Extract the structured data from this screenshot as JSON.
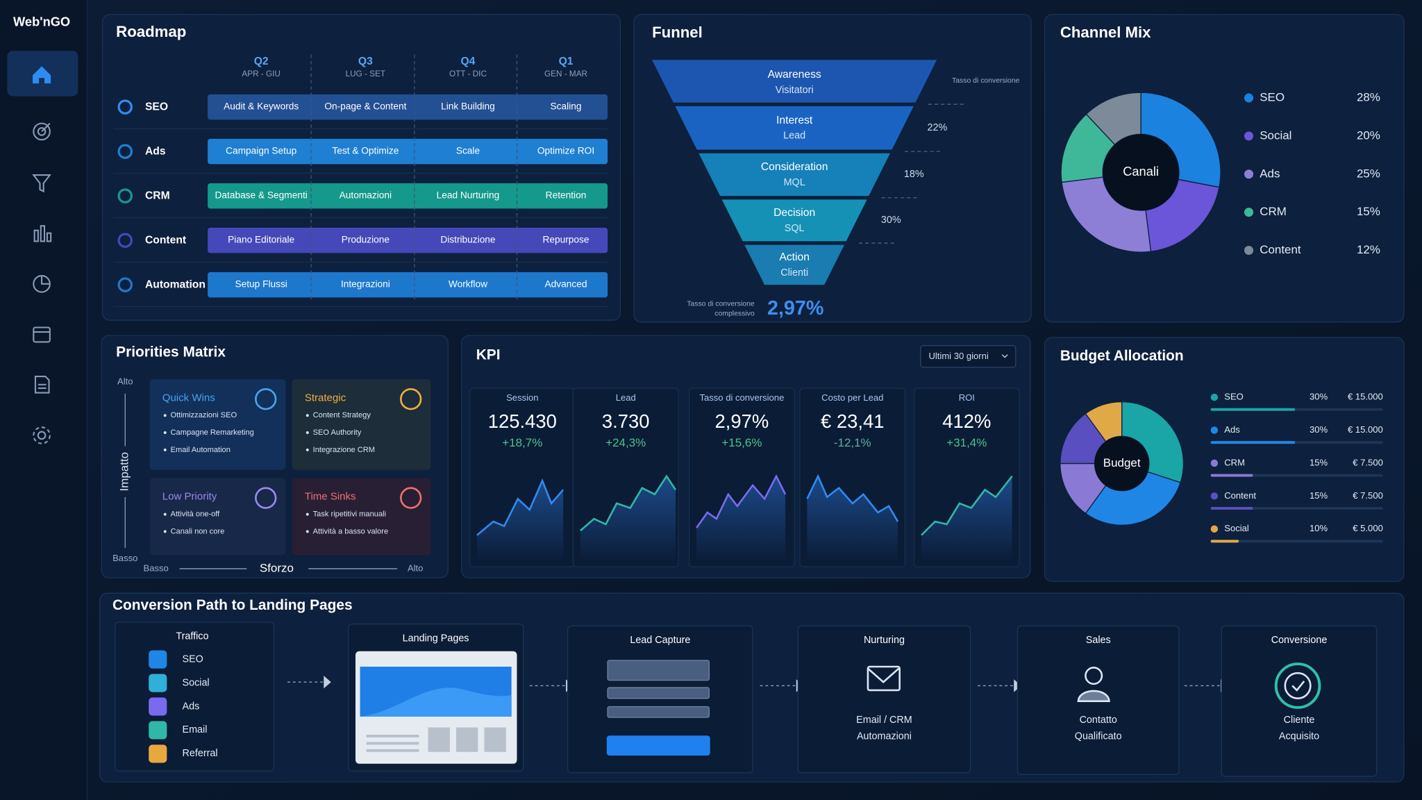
{
  "sidebar": {
    "logo": "Web'nGO"
  },
  "roadmap": {
    "title": "Roadmap",
    "quarters": [
      {
        "name": "Q2",
        "months": "APR - GIU"
      },
      {
        "name": "Q3",
        "months": "LUG - SET"
      },
      {
        "name": "Q4",
        "months": "OTT - DIC"
      },
      {
        "name": "Q1",
        "months": "GEN - MAR"
      }
    ],
    "rows": [
      {
        "label": "SEO",
        "color": "#234f93",
        "cells": [
          "Audit & Keywords",
          "On-page & Content",
          "Link Building",
          "Scaling"
        ]
      },
      {
        "label": "Ads",
        "color": "#1f7fd3",
        "cells": [
          "Campaign Setup",
          "Test & Optimize",
          "Scale",
          "Optimize ROI"
        ]
      },
      {
        "label": "CRM",
        "color": "#14998c",
        "cells": [
          "Database & Segmenti",
          "Automazioni",
          "Lead Nurturing",
          "Retention"
        ]
      },
      {
        "label": "Content",
        "color": "#4548b8",
        "cells": [
          "Piano Editoriale",
          "Produzione",
          "Distribuzione",
          "Repurpose"
        ]
      },
      {
        "label": "Automation",
        "color": "#1d78cc",
        "cells": [
          "Setup Flussi",
          "Integrazioni",
          "Workflow",
          "Advanced"
        ]
      }
    ]
  },
  "funnel": {
    "title": "Funnel",
    "rate_caption": "Tasso di conversione",
    "stages": [
      {
        "name": "Awareness",
        "metric": "Visitatori",
        "color": "#1d56b0"
      },
      {
        "name": "Interest",
        "metric": "Lead",
        "color": "#1b63c2"
      },
      {
        "name": "Consideration",
        "metric": "MQL",
        "color": "#1680b8"
      },
      {
        "name": "Decision",
        "metric": "SQL",
        "color": "#1591b6"
      },
      {
        "name": "Action",
        "metric": "Clienti",
        "color": "#1a7cb0"
      }
    ],
    "rates": [
      "22%",
      "18%",
      "30%"
    ],
    "overall_caption": [
      "Tasso di conversione",
      "complessivo"
    ],
    "overall": "2,97%"
  },
  "channel_mix": {
    "title": "Channel Mix",
    "center": "Canali",
    "names": [
      "SEO",
      "Social",
      "Ads",
      "CRM",
      "Content"
    ],
    "values": [
      28,
      20,
      25,
      15,
      12
    ],
    "value_labels": [
      "28%",
      "20%",
      "25%",
      "15%",
      "12%"
    ],
    "colors": [
      "#1b82e0",
      "#6b55d8",
      "#8d7fd6",
      "#3fb89a",
      "#7c8a99"
    ]
  },
  "priorities": {
    "title": "Priorities Matrix",
    "y_high": "Alto",
    "y_low": "Basso",
    "y_axis": "Impatto",
    "x_low": "Basso",
    "x_axis": "Sforzo",
    "x_high": "Alto",
    "quadrants": [
      {
        "title": "Quick Wins",
        "items": [
          "Ottimizzazioni SEO",
          "Campagne Remarketing",
          "Email Automation"
        ]
      },
      {
        "title": "Strategic",
        "items": [
          "Content Strategy",
          "SEO Authority",
          "Integrazione CRM"
        ]
      },
      {
        "title": "Low Priority",
        "items": [
          "Attività one-off",
          "Canali non core"
        ]
      },
      {
        "title": "Time Sinks",
        "items": [
          "Task ripetitivi manuali",
          "Attività a basso valore"
        ]
      }
    ]
  },
  "kpi": {
    "title": "KPI",
    "period": "Ultimi 30 giorni",
    "cards": [
      {
        "label": "Session",
        "value": "125.430",
        "change": "+18,7%"
      },
      {
        "label": "Lead",
        "value": "3.730",
        "change": "+24,3%"
      },
      {
        "label": "Tasso di conversione",
        "value": "2,97%",
        "change": "+15,6%"
      },
      {
        "label": "Costo per Lead",
        "value": "€ 23,41",
        "change": "-12,1%"
      },
      {
        "label": "ROI",
        "value": "412%",
        "change": "+31,4%"
      }
    ]
  },
  "budget": {
    "title": "Budget Allocation",
    "center": "Budget",
    "names": [
      "SEO",
      "Ads",
      "CRM",
      "Content",
      "Social"
    ],
    "values": [
      30,
      30,
      15,
      15,
      10
    ],
    "value_labels": [
      "30%",
      "30%",
      "15%",
      "15%",
      "10%"
    ],
    "amounts": [
      "€ 15.000",
      "€ 15.000",
      "€ 7.500",
      "€ 7.500",
      "€ 5.000"
    ],
    "colors": [
      "#1aa5a6",
      "#1f86e6",
      "#8a7ad6",
      "#5a4fc0",
      "#e0a846"
    ]
  },
  "conversion_path": {
    "title": "Conversion Path to Landing Pages",
    "traffic": {
      "title": "Traffico",
      "sources": [
        "SEO",
        "Social",
        "Ads",
        "Email",
        "Referral"
      ]
    },
    "steps": [
      {
        "title": "Landing Pages"
      },
      {
        "title": "Lead Capture"
      },
      {
        "title": "Nurturing",
        "lines": [
          "Email / CRM",
          "Automazioni"
        ]
      },
      {
        "title": "Sales",
        "lines": [
          "Contatto",
          "Qualificato"
        ]
      },
      {
        "title": "Conversione",
        "lines": [
          "Cliente",
          "Acquisito"
        ]
      }
    ]
  }
}
